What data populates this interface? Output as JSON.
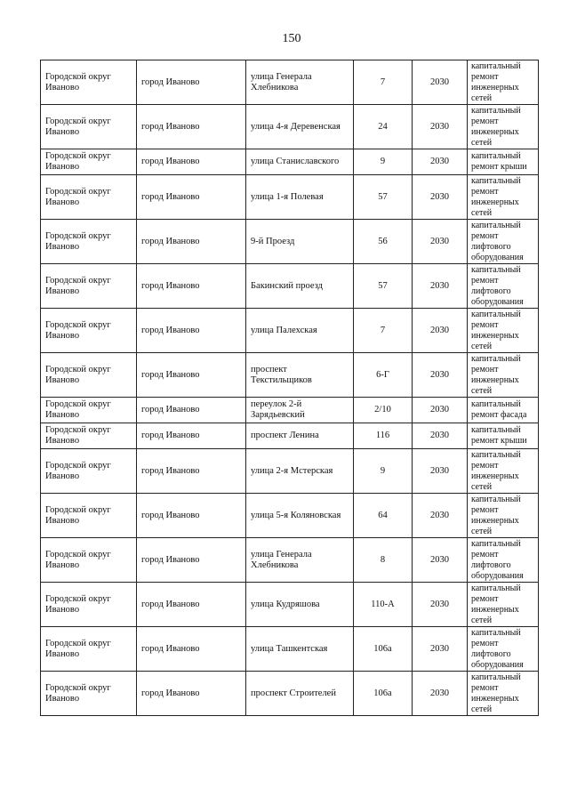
{
  "page_number": "150",
  "rows": [
    {
      "district": "Городской округ Иваново",
      "city": "город Иваново",
      "street": "улица Генерала Хлебникова",
      "house": "7",
      "year": "2030",
      "work": "капитальный ремонт инженерных сетей"
    },
    {
      "district": "Городской округ Иваново",
      "city": "город Иваново",
      "street": "улица 4-я Деревенская",
      "house": "24",
      "year": "2030",
      "work": "капитальный ремонт инженерных сетей"
    },
    {
      "district": "Городской округ Иваново",
      "city": "город Иваново",
      "street": "улица Станиславского",
      "house": "9",
      "year": "2030",
      "work": "капитальный ремонт крыши"
    },
    {
      "district": "Городской округ Иваново",
      "city": "город Иваново",
      "street": "улица 1-я Полевая",
      "house": "57",
      "year": "2030",
      "work": "капитальный ремонт инженерных сетей"
    },
    {
      "district": "Городской округ Иваново",
      "city": "город Иваново",
      "street": "9-й Проезд",
      "house": "56",
      "year": "2030",
      "work": "капитальный ремонт лифтового оборудования"
    },
    {
      "district": "Городской округ Иваново",
      "city": "город Иваново",
      "street": "Бакинский проезд",
      "house": "57",
      "year": "2030",
      "work": "капитальный ремонт лифтового оборудования"
    },
    {
      "district": "Городской округ Иваново",
      "city": "город Иваново",
      "street": "улица Палехская",
      "house": "7",
      "year": "2030",
      "work": "капитальный ремонт инженерных сетей"
    },
    {
      "district": "Городской округ Иваново",
      "city": "город Иваново",
      "street": "проспект Текстильщиков",
      "house": "6-Г",
      "year": "2030",
      "work": "капитальный ремонт инженерных сетей"
    },
    {
      "district": "Городской округ Иваново",
      "city": "город Иваново",
      "street": "переулок 2-й Зарядьевский",
      "house": "2/10",
      "year": "2030",
      "work": "капитальный ремонт фасада"
    },
    {
      "district": "Городской округ Иваново",
      "city": "город Иваново",
      "street": "проспект Ленина",
      "house": "116",
      "year": "2030",
      "work": "капитальный ремонт крыши"
    },
    {
      "district": "Городской округ Иваново",
      "city": "город Иваново",
      "street": "улица 2-я Мстерская",
      "house": "9",
      "year": "2030",
      "work": "капитальный ремонт инженерных сетей"
    },
    {
      "district": "Городской округ Иваново",
      "city": "город Иваново",
      "street": "улица 5-я Коляновская",
      "house": "64",
      "year": "2030",
      "work": "капитальный ремонт инженерных сетей"
    },
    {
      "district": "Городской округ Иваново",
      "city": "город Иваново",
      "street": "улица Генерала Хлебникова",
      "house": "8",
      "year": "2030",
      "work": "капитальный ремонт лифтового оборудования"
    },
    {
      "district": "Городской округ Иваново",
      "city": "город Иваново",
      "street": "улица Кудряшова",
      "house": "110-А",
      "year": "2030",
      "work": "капитальный ремонт инженерных сетей"
    },
    {
      "district": "Городской округ Иваново",
      "city": "город Иваново",
      "street": "улица Ташкентская",
      "house": "106а",
      "year": "2030",
      "work": "капитальный ремонт лифтового оборудования"
    },
    {
      "district": "Городской округ Иваново",
      "city": "город Иваново",
      "street": "проспект Строителей",
      "house": "106а",
      "year": "2030",
      "work": "капитальный ремонт инженерных сетей"
    }
  ]
}
